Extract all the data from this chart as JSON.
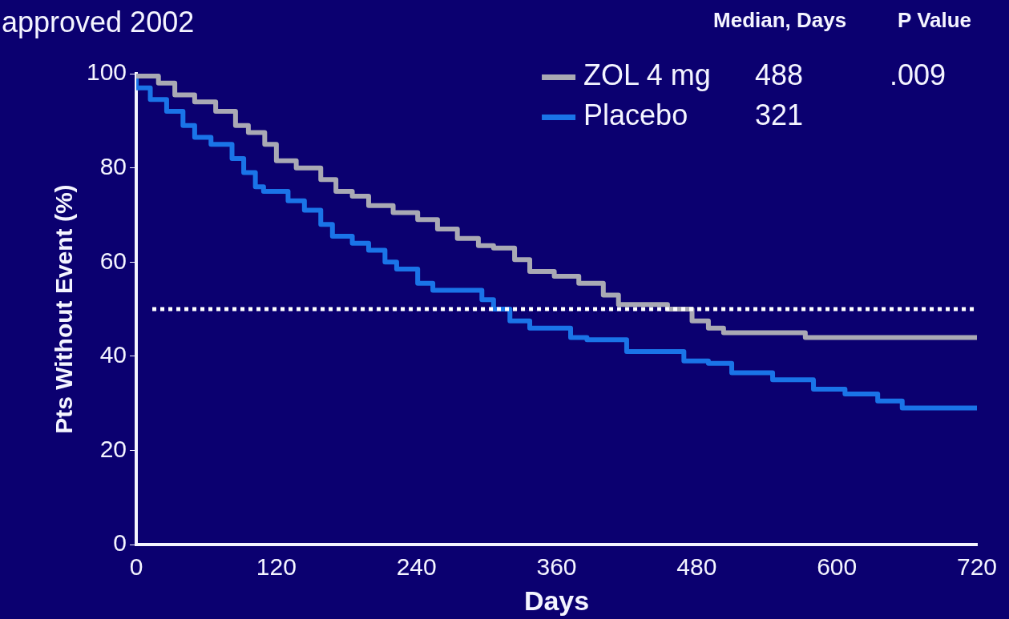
{
  "chart_data": {
    "type": "step",
    "title": "approved 2002",
    "xlabel": "Days",
    "ylabel": "Pts Without Event (%)",
    "series": [
      {
        "name": "ZOL 4 mg",
        "color": "#a9a9b4",
        "x": [
          0,
          19,
          33,
          50,
          68,
          85,
          96,
          110,
          120,
          137,
          158,
          171,
          185,
          199,
          220,
          241,
          258,
          275,
          293,
          306,
          324,
          337,
          358,
          379,
          400,
          413,
          434,
          455,
          476,
          490,
          503,
          573,
          720
        ],
        "values": [
          100,
          99.5,
          98,
          95.5,
          94,
          92,
          89,
          87.5,
          85,
          81.5,
          80,
          77.5,
          75,
          74,
          72,
          70.5,
          69,
          67,
          65,
          63.5,
          63,
          60.5,
          58,
          57,
          55.5,
          53,
          51,
          51,
          50,
          47.5,
          46,
          45,
          44
        ]
      },
      {
        "name": "Placebo",
        "color": "#1a74e8",
        "x": [
          0,
          12,
          26,
          40,
          50,
          64,
          82,
          92,
          102,
          109,
          130,
          144,
          158,
          168,
          185,
          199,
          213,
          223,
          241,
          254,
          268,
          296,
          306,
          320,
          337,
          372,
          386,
          420,
          434,
          469,
          490,
          510,
          545,
          580,
          607,
          635,
          656,
          676,
          720
        ],
        "values": [
          100,
          97,
          94.5,
          92,
          89,
          86.5,
          85,
          82,
          79,
          76,
          75,
          73,
          71,
          68,
          65.5,
          64,
          62.5,
          60,
          58.5,
          55.5,
          54,
          54,
          52,
          50,
          47.5,
          46,
          44,
          43.5,
          41,
          41,
          39,
          38.5,
          36.5,
          35,
          33,
          32,
          30.5,
          29,
          29
        ]
      }
    ],
    "xlim": [
      0,
      720
    ],
    "xticks": [
      0,
      120,
      240,
      360,
      480,
      600,
      720
    ],
    "ylim": [
      0,
      100
    ],
    "yticks": [
      0,
      20,
      40,
      60,
      80,
      100
    ],
    "ref_lines": [
      {
        "axis": "y",
        "value": 50,
        "color": "#ffffff",
        "line_style": "dotted"
      }
    ],
    "annotations": [
      "Median, Days",
      "P Value",
      "488",
      ".009",
      "321"
    ],
    "legend": "top right",
    "grid": false
  }
}
